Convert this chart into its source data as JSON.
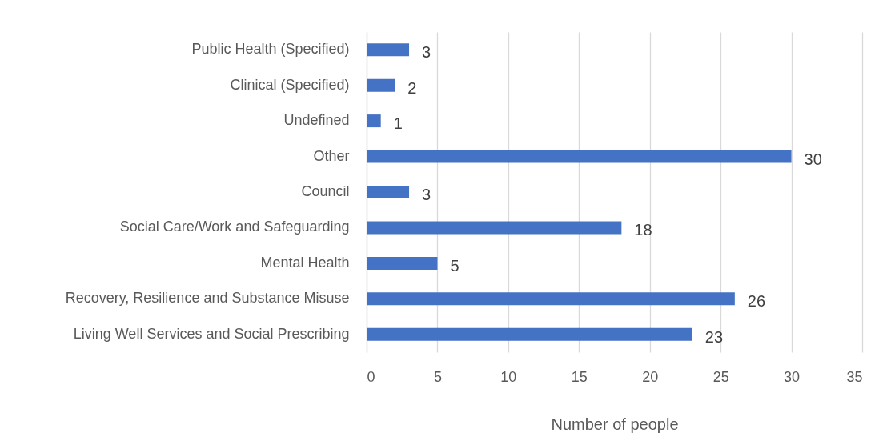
{
  "chart_data": {
    "type": "bar",
    "orientation": "horizontal",
    "categories": [
      "Public Health (Specified)",
      "Clinical (Specified)",
      "Undefined",
      "Other",
      "Council",
      "Social Care/Work and Safeguarding",
      "Mental Health",
      "Recovery, Resilience and Substance Misuse",
      "Living Well Services and Social Prescribing"
    ],
    "values": [
      3,
      2,
      1,
      30,
      3,
      18,
      5,
      26,
      23
    ],
    "color": "#4472c4",
    "xlabel": "Number of people",
    "xlim": [
      0,
      35
    ],
    "xticks": [
      0,
      5,
      10,
      15,
      20,
      25,
      30,
      35
    ],
    "grid": "x",
    "data_labels": true
  }
}
